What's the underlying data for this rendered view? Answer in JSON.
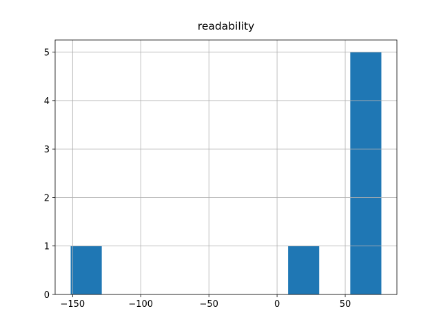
{
  "chart_data": {
    "type": "histogram",
    "title": "readability",
    "bins": [
      -151.4,
      -128.6,
      -105.8,
      -83.0,
      -60.2,
      -37.5,
      -14.7,
      8.1,
      30.9,
      53.7,
      76.5
    ],
    "values": [
      1,
      0,
      0,
      0,
      0,
      0,
      0,
      1,
      0,
      5
    ],
    "color": "#1f77b4",
    "xlim": [
      -162.8,
      87.9
    ],
    "xticks": [
      {
        "value": -150,
        "label": "−150"
      },
      {
        "value": -100,
        "label": "−100"
      },
      {
        "value": -50,
        "label": "−50"
      },
      0,
      50
    ],
    "ylim": [
      0,
      5.25
    ],
    "yticks": [
      0,
      1,
      2,
      3,
      4,
      5
    ],
    "grid": true
  }
}
